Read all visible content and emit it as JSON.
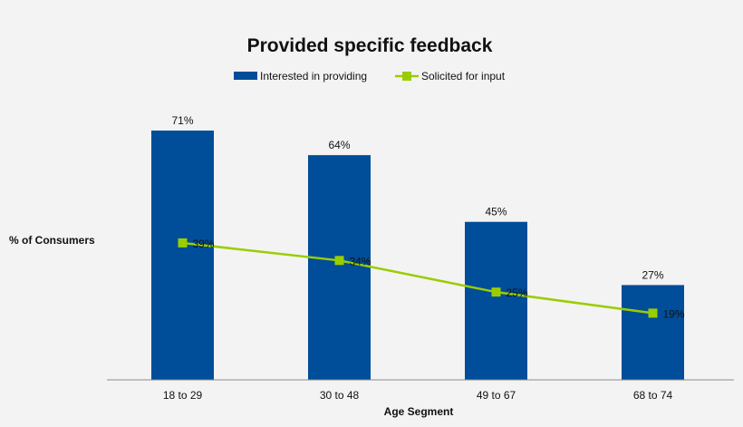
{
  "chart_data": {
    "type": "bar",
    "title": "Provided specific feedback",
    "xlabel": "Age Segment",
    "ylabel": "% of Consumers",
    "categories": [
      "18 to 29",
      "30 to 48",
      "49 to 67",
      "68 to 74"
    ],
    "ylim": [
      0,
      80
    ],
    "grid": false,
    "legend_position": "top",
    "series": [
      {
        "name": "Interested in providing",
        "type": "bar",
        "color": "#004d99",
        "values": [
          71,
          64,
          45,
          27
        ],
        "labels": [
          "71%",
          "64%",
          "45%",
          "27%"
        ]
      },
      {
        "name": "Solicited for input",
        "type": "line",
        "marker": "square",
        "color": "#9acd00",
        "values": [
          39,
          34,
          25,
          19
        ],
        "labels": [
          "39%",
          "34%",
          "25%",
          "19%"
        ]
      }
    ]
  }
}
